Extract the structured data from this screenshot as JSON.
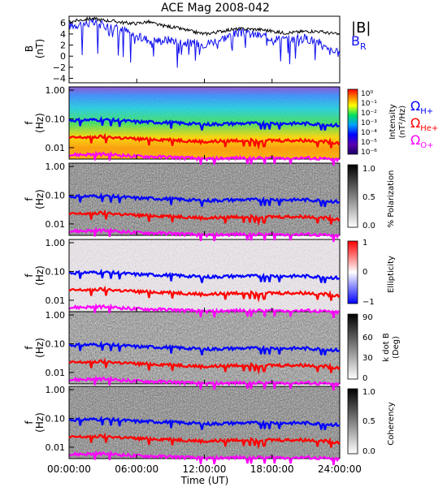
{
  "title": "ACE Mag 2008-042",
  "xlabel": "Time (UT)",
  "x_ticks": [
    "00:00:00",
    "06:00:00",
    "12:00:00",
    "18:00:00",
    "24:00:00"
  ],
  "legend": {
    "B_abs": "|B|",
    "B_R_main": "B",
    "B_R_sub": "R",
    "omega": "Ω",
    "h_sub": "H+",
    "he_sub": "He+",
    "o_sub": "O+"
  },
  "colors": {
    "B_abs": "#000000",
    "B_R": "#1010f0",
    "omega_H": "#0000ff",
    "omega_He": "#ff0000",
    "omega_O": "#ff00ff"
  },
  "panel_labels": {
    "b": {
      "main": "B",
      "unit": "(nT)"
    },
    "f": {
      "main": "f",
      "unit": "(Hz)"
    }
  },
  "colorbars": {
    "intensity": {
      "label": "Intensity",
      "unit": "(nT²/Hz)",
      "ticks": [
        "10⁰",
        "10⁻¹",
        "10⁻²",
        "10⁻³",
        "10⁻⁴",
        "10⁻⁵",
        "10⁻⁶"
      ]
    },
    "polarization": {
      "label": "% Polarization",
      "ticks": [
        "1.0",
        "0.5",
        "0.0"
      ]
    },
    "ellipticity": {
      "label": "Ellipticity",
      "ticks": [
        "1",
        "0",
        "−1"
      ]
    },
    "kdotb": {
      "label": "k dot B",
      "unit": "(Deg)",
      "ticks": [
        "90",
        "60",
        "30",
        "0"
      ]
    },
    "coherency": {
      "label": "Coherency",
      "ticks": [
        "1.0",
        "0.5",
        "0.0"
      ]
    }
  },
  "chart_data": [
    {
      "type": "line",
      "ylabel": "B (nT)",
      "ylim": [
        -4.8,
        7.2
      ],
      "xlim_hours": [
        0,
        24
      ],
      "yticks": [
        "6",
        "4",
        "2",
        "0",
        "−2",
        "−4"
      ],
      "series": [
        {
          "name": "|B|",
          "x_hours": [
            0,
            1,
            2,
            3,
            4,
            5,
            6,
            7,
            8,
            9,
            10,
            11,
            12,
            13,
            14,
            15,
            16,
            17,
            18,
            19,
            20,
            21,
            22,
            23,
            24
          ],
          "values": [
            6.2,
            6.5,
            6.8,
            6.5,
            6.3,
            6.0,
            5.9,
            6.2,
            5.6,
            5.3,
            4.9,
            4.4,
            4.0,
            4.3,
            4.7,
            4.9,
            4.9,
            4.8,
            4.5,
            4.2,
            4.3,
            4.5,
            4.5,
            4.2,
            3.9
          ]
        },
        {
          "name": "B_R",
          "x_hours": [
            0,
            1,
            2,
            3,
            4,
            5,
            6,
            7,
            8,
            9,
            10,
            11,
            12,
            13,
            14,
            15,
            16,
            17,
            18,
            19,
            20,
            21,
            22,
            23,
            24
          ],
          "values": [
            5.5,
            5.8,
            6.0,
            5.6,
            5.2,
            4.6,
            3.5,
            3.0,
            2.8,
            3.0,
            2.5,
            2.3,
            2.2,
            2.8,
            3.5,
            4.2,
            4.0,
            3.7,
            3.3,
            3.0,
            3.1,
            3.2,
            2.7,
            1.0,
            0.5
          ]
        }
      ]
    },
    {
      "type": "heatmap",
      "ylabel": "f (Hz)",
      "yscale": "log",
      "ylim": [
        0.004,
        1.3
      ],
      "yticks": [
        "1.00",
        "0.10",
        "0.01"
      ],
      "panels": [
        "Intensity",
        "% Polarization",
        "Ellipticity",
        "k dot B",
        "Coherency"
      ],
      "series": [
        {
          "name": "Ω H+",
          "x_hours": [
            0,
            3,
            6,
            9,
            12,
            15,
            18,
            21,
            24
          ],
          "values": [
            0.09,
            0.095,
            0.08,
            0.075,
            0.065,
            0.07,
            0.07,
            0.07,
            0.06
          ]
        },
        {
          "name": "Ω He+",
          "x_hours": [
            0,
            3,
            6,
            9,
            12,
            15,
            18,
            21,
            24
          ],
          "values": [
            0.022,
            0.024,
            0.02,
            0.019,
            0.016,
            0.018,
            0.018,
            0.018,
            0.015
          ]
        },
        {
          "name": "Ω O+",
          "x_hours": [
            0,
            3,
            6,
            9,
            12,
            15,
            18,
            21,
            24
          ],
          "values": [
            0.0056,
            0.006,
            0.005,
            0.0047,
            0.0041,
            0.0044,
            0.0044,
            0.0044,
            0.0038
          ]
        }
      ]
    }
  ]
}
